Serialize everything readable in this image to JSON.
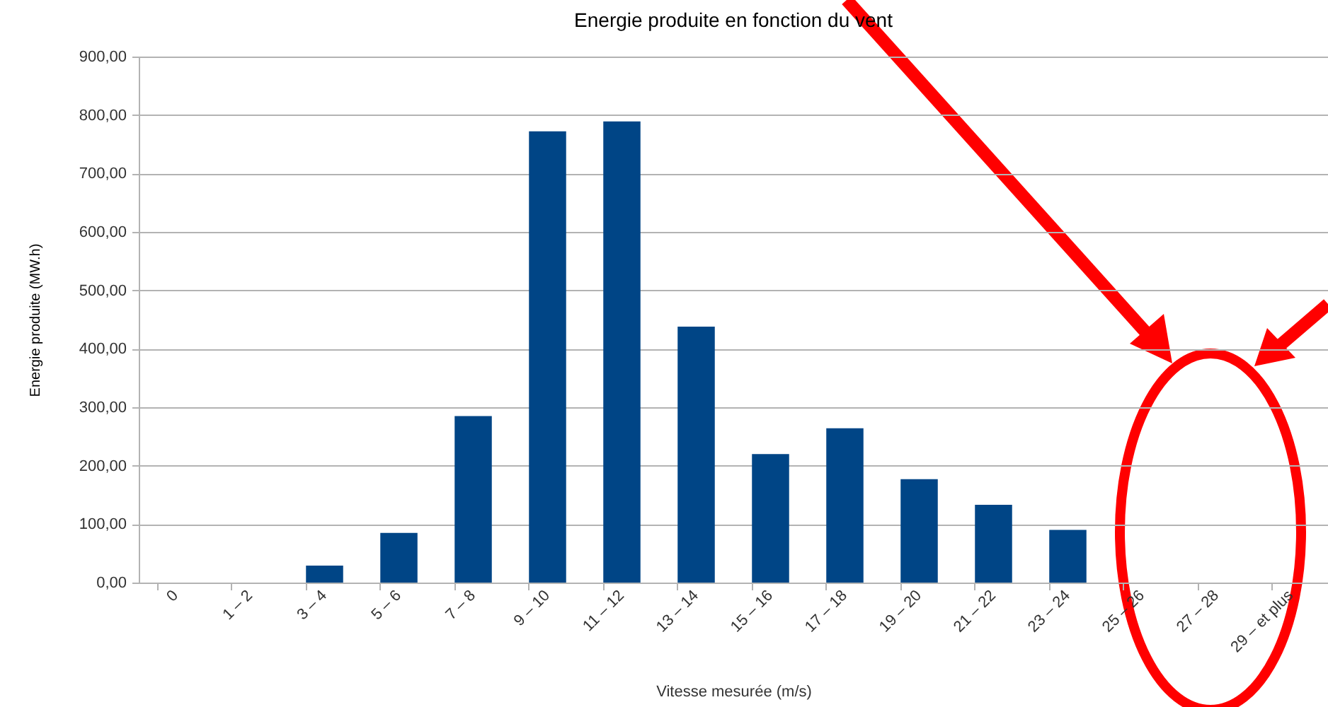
{
  "chart_data": {
    "type": "bar",
    "title": "Energie produite en fonction du vent",
    "xlabel": "Vitesse mesurée (m/s)",
    "ylabel": "Energie produite (MW.h)",
    "categories": [
      "0",
      "1 – 2",
      "3 – 4",
      "5 – 6",
      "7 – 8",
      "9 – 10",
      "11 – 12",
      "13 – 14",
      "15 – 16",
      "17 – 18",
      "19 – 20",
      "21 – 22",
      "23 – 24",
      "25 – 26",
      "27 – 28",
      "29 – et plus"
    ],
    "values": [
      0,
      0,
      29,
      85,
      285,
      772,
      789,
      438,
      220,
      264,
      177,
      133,
      90,
      0,
      0,
      0
    ],
    "color": "#004586",
    "ylim": [
      0,
      900
    ],
    "yticks": [
      {
        "value": 0,
        "label": "0,00"
      },
      {
        "value": 100,
        "label": "100,00"
      },
      {
        "value": 200,
        "label": "200,00"
      },
      {
        "value": 300,
        "label": "300,00"
      },
      {
        "value": 400,
        "label": "400,00"
      },
      {
        "value": 500,
        "label": "500,00"
      },
      {
        "value": 600,
        "label": "600,00"
      },
      {
        "value": 700,
        "label": "700,00"
      },
      {
        "value": 800,
        "label": "800,00"
      },
      {
        "value": 900,
        "label": "900,00"
      }
    ],
    "grid": "y"
  }
}
